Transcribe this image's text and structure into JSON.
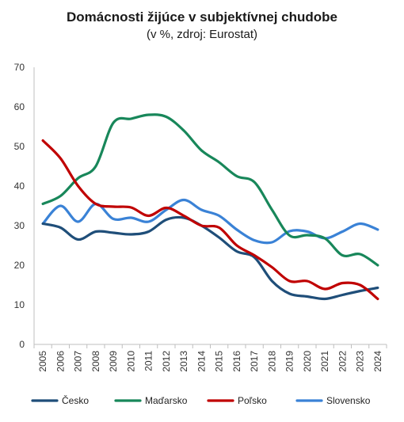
{
  "chart_data": {
    "type": "line",
    "title": "Domácnosti žijúce v subjektívnej chudobe",
    "subtitle": "(v %, zdroj: Eurostat)",
    "xlabel": "",
    "ylabel": "",
    "ylim": [
      0,
      70
    ],
    "yticks": [
      0,
      10,
      20,
      30,
      40,
      50,
      60,
      70
    ],
    "grid": false,
    "legend_position": "bottom",
    "x": [
      "2005",
      "2006",
      "2007",
      "2008",
      "2009",
      "2010",
      "2011",
      "2012",
      "2013",
      "2014",
      "2015",
      "2016",
      "2017",
      "2018",
      "2019",
      "2020",
      "2021",
      "2022",
      "2023",
      "2024"
    ],
    "series": [
      {
        "name": "Česko",
        "color": "#1f4e79",
        "values": [
          30.5,
          29.5,
          26.5,
          28.5,
          28.2,
          27.8,
          28.5,
          31.5,
          32,
          30,
          27,
          23.5,
          22,
          16,
          12.8,
          12.1,
          11.5,
          12.5,
          13.5,
          14.3
        ]
      },
      {
        "name": "Maďarsko",
        "color": "#18875a",
        "values": [
          35.5,
          37.5,
          42,
          45,
          56,
          57,
          58,
          57.5,
          54,
          49,
          46,
          42.5,
          41,
          34,
          27.5,
          27.6,
          26.8,
          22.5,
          22.8,
          20
        ]
      },
      {
        "name": "Poľsko",
        "color": "#c00000",
        "values": [
          51.5,
          47,
          40,
          35.5,
          34.8,
          34.6,
          32.5,
          34.5,
          32.5,
          30,
          29.5,
          25,
          22.5,
          19.5,
          16,
          16,
          14,
          15.5,
          15,
          11.5
        ]
      },
      {
        "name": "Slovensko",
        "color": "#3a82d6",
        "values": [
          30.5,
          35,
          31,
          35.5,
          31.7,
          32,
          31,
          34,
          36.5,
          34,
          32.5,
          29,
          26.3,
          25.8,
          28.6,
          28.5,
          26.8,
          28.5,
          30.5,
          29
        ]
      }
    ]
  }
}
